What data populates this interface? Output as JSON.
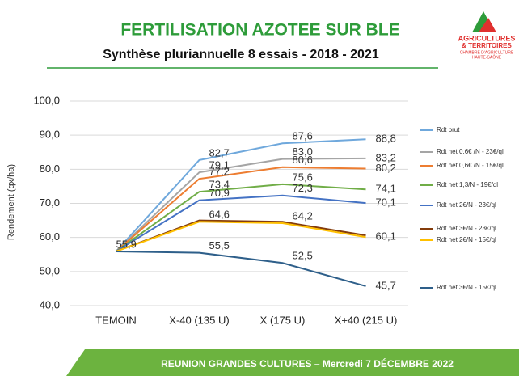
{
  "chart_data": {
    "type": "line",
    "title": "FERTILISATION AZOTEE SUR BLE",
    "subtitle": "Synthèse pluriannuelle 8 essais - 2018 - 2021",
    "ylabel": "Rendement (qx/ha)",
    "categories": [
      "TEMOIN",
      "X-40 (135 U)",
      "X (175 U)",
      "X+40 (215 U)"
    ],
    "ylim": [
      40,
      100
    ],
    "yticks": [
      {
        "value": 40,
        "label": "40,0"
      },
      {
        "value": 50,
        "label": "50,0"
      },
      {
        "value": 60,
        "label": "60,0"
      },
      {
        "value": 70,
        "label": "70,0"
      },
      {
        "value": 80,
        "label": "80,0"
      },
      {
        "value": 90,
        "label": "90,0"
      },
      {
        "value": 100,
        "label": "100,0"
      }
    ],
    "grid": true,
    "series": [
      {
        "name": "Rdt brut",
        "color": "#6fa8dc",
        "values": [
          55.9,
          82.7,
          87.6,
          88.8
        ],
        "value_labels": [
          null,
          "82,7",
          "87,6",
          "88,8"
        ]
      },
      {
        "name": "Rdt net 0,6€ /N - 23€/ql",
        "color": "#a5a5a5",
        "values": [
          55.9,
          79.1,
          83.0,
          83.2
        ],
        "value_labels": [
          null,
          "79,1",
          "83,0",
          "83,2"
        ]
      },
      {
        "name": "Rdt net 0,6€ /N - 15€/ql",
        "color": "#ed7d31",
        "values": [
          55.9,
          77.2,
          80.6,
          80.2
        ],
        "value_labels": [
          null,
          "77,2",
          "80,6",
          "80,2"
        ]
      },
      {
        "name": "Rdt net 1,3/N - 19€/ql",
        "color": "#70ad47",
        "values": [
          55.9,
          73.4,
          75.6,
          74.1
        ],
        "value_labels": [
          null,
          "73,4",
          "75,6",
          "74,1"
        ]
      },
      {
        "name": "Rdt net 2€/N - 23€/ql",
        "color": "#4472c4",
        "values": [
          55.9,
          70.9,
          72.3,
          70.1
        ],
        "value_labels": [
          null,
          "70,9",
          "72,3",
          "70,1"
        ]
      },
      {
        "name": "Rdt net 3€/N - 23€/ql",
        "color": "#843c0c",
        "values": [
          55.9,
          65.0,
          64.6,
          60.6
        ]
      },
      {
        "name": "Rdt net 2€/N - 15€/ql",
        "color": "#ffc000",
        "values": [
          55.9,
          64.6,
          64.2,
          60.1
        ],
        "value_labels": [
          null,
          "64,6",
          "64,2",
          "60,1"
        ]
      },
      {
        "name": "Rdt net 3€/N - 15€/ql",
        "color": "#2e5f8a",
        "values": [
          55.9,
          55.5,
          52.5,
          45.7
        ],
        "value_labels": [
          "55,9",
          "55,5",
          "52,5",
          "45,7"
        ]
      }
    ]
  },
  "slide": {
    "footer": "REUNION GRANDES CULTURES – Mercredi 7 DÉCEMBRE 2022",
    "logo": [
      "AGRICULTURES",
      "& TERRITOIRES",
      "CHAMBRE D'AGRICULTURE",
      "HAUTE-SAÔNE"
    ]
  }
}
